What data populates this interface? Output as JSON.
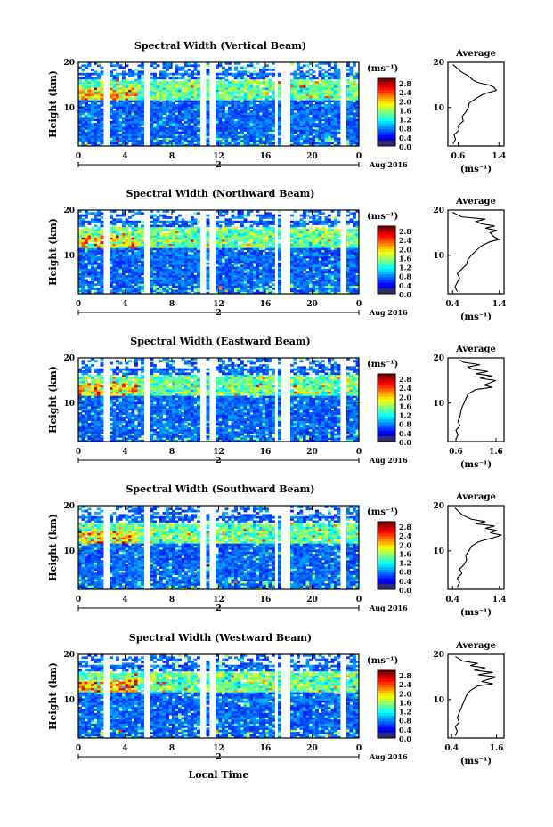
{
  "chart_data": [
    {
      "type": "heatmap",
      "title": "Spectral Width (Vertical Beam)",
      "ylabel": "Height (km)",
      "x_ticks": [
        "0",
        "4",
        "8",
        "12",
        "16",
        "20",
        "0"
      ],
      "y_ticks": [
        "10",
        "20"
      ],
      "xlim": [
        0,
        24
      ],
      "ylim": [
        1.5,
        20
      ],
      "date_marker": "2",
      "date_label": "Aug 2016",
      "colorbar": {
        "unit": "(ms⁻¹)",
        "ticks": [
          "0.0",
          "0.4",
          "0.8",
          "1.2",
          "1.6",
          "2.0",
          "2.4",
          "2.8"
        ],
        "range": [
          0,
          3.0
        ]
      },
      "data_gaps_hours": [
        [
          2.3,
          2.6
        ],
        [
          5.8,
          6.1
        ],
        [
          10.6,
          10.9
        ],
        [
          11.3,
          11.7
        ],
        [
          16.8,
          17.0
        ],
        [
          17.4,
          18.0
        ],
        [
          22.6,
          22.8
        ]
      ],
      "profile": {
        "title": "Average",
        "x_ticks": [
          "0.6",
          "1.4"
        ],
        "xlim": [
          0.4,
          1.5
        ],
        "y_ticks": [
          "10",
          "20"
        ],
        "xlabel": "(ms⁻¹)",
        "points": [
          [
            0.5,
            2
          ],
          [
            0.55,
            3
          ],
          [
            0.52,
            4
          ],
          [
            0.62,
            5
          ],
          [
            0.6,
            6
          ],
          [
            0.7,
            7
          ],
          [
            0.68,
            8
          ],
          [
            0.75,
            9
          ],
          [
            0.8,
            10
          ],
          [
            0.82,
            11
          ],
          [
            0.95,
            12
          ],
          [
            1.1,
            13
          ],
          [
            1.35,
            13.8
          ],
          [
            1.3,
            14.5
          ],
          [
            1.2,
            15
          ],
          [
            1.0,
            15.5
          ],
          [
            0.9,
            16
          ],
          [
            0.85,
            16.5
          ],
          [
            0.8,
            17
          ],
          [
            0.72,
            17.5
          ],
          [
            0.65,
            18
          ],
          [
            0.6,
            18.5
          ],
          [
            0.55,
            19
          ],
          [
            0.5,
            19.5
          ]
        ]
      }
    },
    {
      "type": "heatmap",
      "title": "Spectral Width (Northward Beam)",
      "ylabel": "Height (km)",
      "x_ticks": [
        "0",
        "4",
        "8",
        "12",
        "16",
        "20",
        "0"
      ],
      "y_ticks": [
        "10",
        "20"
      ],
      "xlim": [
        0,
        24
      ],
      "ylim": [
        1.5,
        20
      ],
      "date_marker": "2",
      "date_label": "Aug 2016",
      "colorbar": {
        "unit": "(ms⁻¹)",
        "ticks": [
          "0.0",
          "0.4",
          "0.8",
          "1.2",
          "1.6",
          "2.0",
          "2.4",
          "2.8"
        ],
        "range": [
          0,
          3.0
        ]
      },
      "data_gaps_hours": [
        [
          2.3,
          2.6
        ],
        [
          5.8,
          6.1
        ],
        [
          10.6,
          10.9
        ],
        [
          11.3,
          11.7
        ],
        [
          16.8,
          17.0
        ],
        [
          17.4,
          18.0
        ],
        [
          22.6,
          22.8
        ]
      ],
      "profile": {
        "title": "Average",
        "x_ticks": [
          "0.4",
          "1.4"
        ],
        "xlim": [
          0.3,
          1.5
        ],
        "y_ticks": [
          "10",
          "20"
        ],
        "xlabel": "(ms⁻¹)",
        "points": [
          [
            0.5,
            2
          ],
          [
            0.45,
            3
          ],
          [
            0.5,
            4
          ],
          [
            0.55,
            5
          ],
          [
            0.5,
            6
          ],
          [
            0.6,
            7
          ],
          [
            0.7,
            8
          ],
          [
            0.72,
            9
          ],
          [
            0.8,
            10
          ],
          [
            0.9,
            11
          ],
          [
            1.0,
            12
          ],
          [
            1.2,
            13
          ],
          [
            1.4,
            13.5
          ],
          [
            1.3,
            14
          ],
          [
            1.2,
            15
          ],
          [
            1.35,
            15.5
          ],
          [
            1.1,
            16
          ],
          [
            1.3,
            16.5
          ],
          [
            1.0,
            17
          ],
          [
            0.9,
            17.5
          ],
          [
            1.1,
            18
          ],
          [
            0.6,
            18.5
          ],
          [
            0.5,
            19
          ],
          [
            0.4,
            19.5
          ]
        ]
      }
    },
    {
      "type": "heatmap",
      "title": "Spectral Width (Eastward Beam)",
      "ylabel": "Height (km)",
      "x_ticks": [
        "0",
        "4",
        "8",
        "12",
        "16",
        "20",
        "0"
      ],
      "y_ticks": [
        "10",
        "20"
      ],
      "xlim": [
        0,
        24
      ],
      "ylim": [
        1.5,
        20
      ],
      "date_marker": "2",
      "date_label": "Aug 2016",
      "colorbar": {
        "unit": "(ms⁻¹)",
        "ticks": [
          "0.0",
          "0.4",
          "0.8",
          "1.2",
          "1.6",
          "2.0",
          "2.4",
          "2.8"
        ],
        "range": [
          0,
          3.0
        ]
      },
      "data_gaps_hours": [
        [
          2.3,
          2.6
        ],
        [
          5.8,
          6.1
        ],
        [
          10.6,
          10.9
        ],
        [
          11.3,
          11.7
        ],
        [
          16.8,
          17.0
        ],
        [
          17.4,
          18.0
        ],
        [
          22.6,
          22.8
        ]
      ],
      "profile": {
        "title": "Average",
        "x_ticks": [
          "0.6",
          "1.6"
        ],
        "xlim": [
          0.4,
          1.8
        ],
        "y_ticks": [
          "10",
          "20"
        ],
        "xlabel": "(ms⁻¹)",
        "points": [
          [
            0.6,
            2
          ],
          [
            0.65,
            3
          ],
          [
            0.6,
            4
          ],
          [
            0.7,
            5
          ],
          [
            0.65,
            6
          ],
          [
            0.7,
            7
          ],
          [
            0.72,
            8
          ],
          [
            0.75,
            9
          ],
          [
            0.8,
            10
          ],
          [
            0.85,
            11
          ],
          [
            0.9,
            12
          ],
          [
            1.1,
            13
          ],
          [
            1.5,
            13.5
          ],
          [
            1.3,
            14
          ],
          [
            1.6,
            15
          ],
          [
            1.2,
            15.5
          ],
          [
            1.5,
            16
          ],
          [
            1.1,
            16.5
          ],
          [
            1.4,
            17
          ],
          [
            1.0,
            17.5
          ],
          [
            0.9,
            18
          ],
          [
            1.2,
            18.5
          ],
          [
            0.8,
            19
          ],
          [
            0.7,
            19.5
          ]
        ]
      }
    },
    {
      "type": "heatmap",
      "title": "Spectral Width (Southward Beam)",
      "ylabel": "Height (km)",
      "x_ticks": [
        "0",
        "4",
        "8",
        "12",
        "16",
        "20",
        "0"
      ],
      "y_ticks": [
        "10",
        "20"
      ],
      "xlim": [
        0,
        24
      ],
      "ylim": [
        1.5,
        20
      ],
      "date_marker": "2",
      "date_label": "Aug 2016",
      "colorbar": {
        "unit": "(ms⁻¹)",
        "ticks": [
          "0.0",
          "0.4",
          "0.8",
          "1.2",
          "1.6",
          "2.0",
          "2.4",
          "2.8"
        ],
        "range": [
          0,
          3.0
        ]
      },
      "data_gaps_hours": [
        [
          2.3,
          2.6
        ],
        [
          5.8,
          6.1
        ],
        [
          10.6,
          10.9
        ],
        [
          11.3,
          11.7
        ],
        [
          16.8,
          17.0
        ],
        [
          17.4,
          18.0
        ],
        [
          22.6,
          22.8
        ]
      ],
      "profile": {
        "title": "Average",
        "x_ticks": [
          "0.4",
          "1.4"
        ],
        "xlim": [
          0.3,
          1.5
        ],
        "y_ticks": [
          "10",
          "20"
        ],
        "xlabel": "(ms⁻¹)",
        "points": [
          [
            0.5,
            2
          ],
          [
            0.55,
            3
          ],
          [
            0.5,
            4
          ],
          [
            0.6,
            5
          ],
          [
            0.55,
            6
          ],
          [
            0.65,
            7
          ],
          [
            0.7,
            8
          ],
          [
            0.68,
            9
          ],
          [
            0.75,
            10
          ],
          [
            0.8,
            11
          ],
          [
            0.95,
            12
          ],
          [
            1.3,
            13
          ],
          [
            1.45,
            13.5
          ],
          [
            1.2,
            14
          ],
          [
            1.35,
            14.5
          ],
          [
            1.1,
            15
          ],
          [
            1.3,
            15.5
          ],
          [
            0.9,
            16
          ],
          [
            1.1,
            16.5
          ],
          [
            0.8,
            17
          ],
          [
            0.7,
            17.5
          ],
          [
            0.6,
            18
          ],
          [
            0.55,
            18.5
          ],
          [
            0.5,
            19
          ],
          [
            0.45,
            19.5
          ]
        ]
      }
    },
    {
      "type": "heatmap",
      "title": "Spectral Width (Westward Beam)",
      "ylabel": "Height (km)",
      "x_ticks": [
        "0",
        "4",
        "8",
        "12",
        "16",
        "20",
        "0"
      ],
      "y_ticks": [
        "10",
        "20"
      ],
      "xlim": [
        0,
        24
      ],
      "ylim": [
        1.5,
        20
      ],
      "date_marker": "2",
      "date_label": "Aug 2016",
      "xlabel": "Local Time",
      "colorbar": {
        "unit": "(ms⁻¹)",
        "ticks": [
          "0.0",
          "0.4",
          "0.8",
          "1.2",
          "1.6",
          "2.0",
          "2.4",
          "2.8"
        ],
        "range": [
          0,
          3.0
        ]
      },
      "data_gaps_hours": [
        [
          2.3,
          2.6
        ],
        [
          5.8,
          6.1
        ],
        [
          10.6,
          10.9
        ],
        [
          11.3,
          11.7
        ],
        [
          16.8,
          17.0
        ],
        [
          17.4,
          18.0
        ],
        [
          22.6,
          22.8
        ]
      ],
      "profile": {
        "title": "Average",
        "x_ticks": [
          "0.4",
          "1.6"
        ],
        "xlim": [
          0.3,
          1.8
        ],
        "y_ticks": [
          "10",
          "20"
        ],
        "xlabel": "(ms⁻¹)",
        "points": [
          [
            0.5,
            2
          ],
          [
            0.55,
            3
          ],
          [
            0.5,
            4
          ],
          [
            0.6,
            5
          ],
          [
            0.55,
            6
          ],
          [
            0.6,
            7
          ],
          [
            0.65,
            8
          ],
          [
            0.7,
            9
          ],
          [
            0.75,
            10
          ],
          [
            0.8,
            11
          ],
          [
            0.9,
            12
          ],
          [
            1.1,
            13
          ],
          [
            1.5,
            13.5
          ],
          [
            1.2,
            14
          ],
          [
            1.6,
            15
          ],
          [
            1.1,
            15.5
          ],
          [
            1.5,
            16
          ],
          [
            1.0,
            16.5
          ],
          [
            1.3,
            17
          ],
          [
            0.9,
            17.5
          ],
          [
            1.1,
            18
          ],
          [
            0.7,
            18.5
          ],
          [
            0.6,
            19
          ],
          [
            0.5,
            19.5
          ]
        ]
      }
    }
  ]
}
